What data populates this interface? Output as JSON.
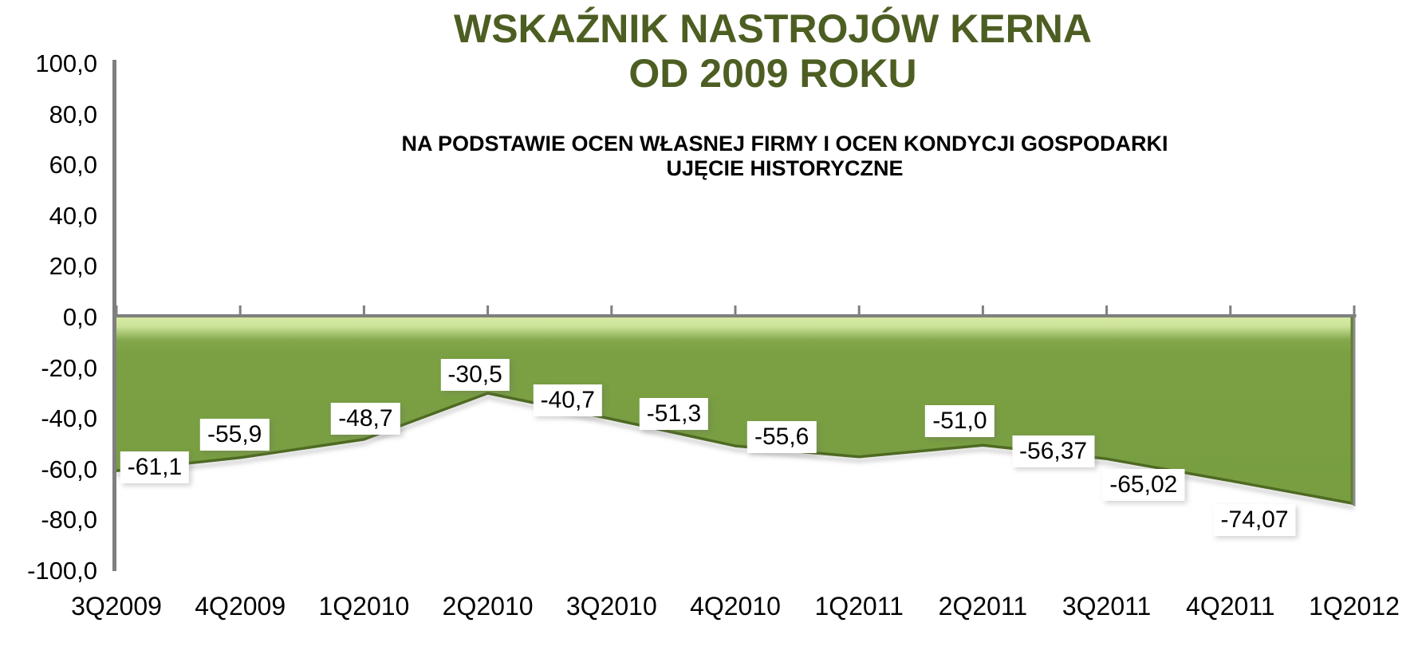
{
  "window": {
    "background": "#ffffff"
  },
  "title": {
    "line1": "WSKAŹNIK NASTROJÓW KERNA",
    "line2": "OD 2009 ROKU",
    "color": "#4d5e22"
  },
  "subtitle": {
    "line1": "NA PODSTAWIE OCEN WŁASNEJ FIRMY I OCEN KONDYCJI GOSPODARKI",
    "line2": "UJĘCIE HISTORYCZNE"
  },
  "colors": {
    "area_fill": "#7aa043",
    "area_gloss": "#d6e9a4",
    "line": "#4f6b24",
    "line_shadow": "#888888",
    "axis": "#7f7f7f",
    "label_background": "#ffffff",
    "text": "#000000"
  },
  "chart_data": {
    "type": "area",
    "title": "WSKAŹNIK NASTROJÓW KERNA OD 2009 ROKU",
    "subtitle": "NA PODSTAWIE OCEN WŁASNEJ FIRMY I OCEN KONDYCJI GOSPODARKI UJĘCIE HISTORYCZNE",
    "categories": [
      "3Q2009",
      "4Q2009",
      "1Q2010",
      "2Q2010",
      "3Q2010",
      "4Q2010",
      "1Q2011",
      "2Q2011",
      "3Q2011",
      "4Q2011",
      "1Q2012"
    ],
    "values": [
      -61.1,
      -55.9,
      -48.7,
      -30.5,
      -40.7,
      -51.3,
      -55.6,
      -51.0,
      -56.37,
      -65.02,
      -74.07
    ],
    "point_labels": [
      "-61,1",
      "-55,9",
      "-48,7",
      "-30,5",
      "-40,7",
      "-51,3",
      "-55,6",
      "-51,0",
      "-56,37",
      "-65,02",
      "-74,07"
    ],
    "y_tick_labels": [
      "100,0",
      "80,0",
      "60,0",
      "40,0",
      "20,0",
      "0,0",
      "-20,0",
      "-40,0",
      "-60,0",
      "-80,0",
      "-100,0"
    ],
    "y_tick_values": [
      100,
      80,
      60,
      40,
      20,
      0,
      -20,
      -40,
      -60,
      -80,
      -100
    ],
    "ylim": [
      -100,
      100
    ],
    "xlabel": "",
    "ylabel": "",
    "grid": false,
    "legend": "none",
    "baseline": 0
  }
}
